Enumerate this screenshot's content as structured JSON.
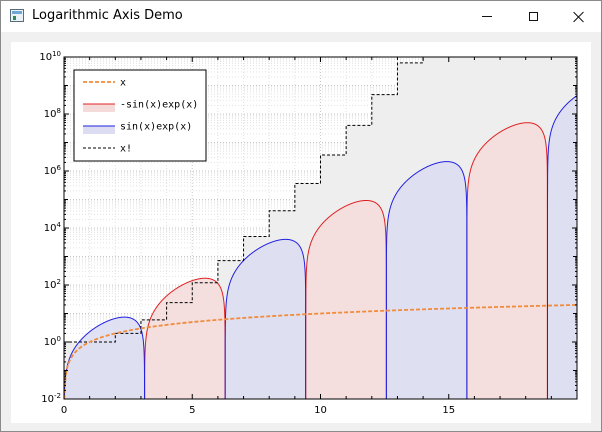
{
  "window": {
    "title": "Logarithmic Axis Demo",
    "icon": "chart-window-icon",
    "controls": {
      "minimize": "minimize-icon",
      "maximize": "maximize-icon",
      "close": "close-icon"
    }
  },
  "chart_data": {
    "type": "area",
    "title": "",
    "xlabel": "",
    "ylabel": "",
    "xlim": [
      0,
      20
    ],
    "ylim": [
      0.01,
      10000000000
    ],
    "yscale": "log",
    "grid": true,
    "legend_position": "top-left",
    "x_ticks": [
      {
        "v": 0,
        "label": "0"
      },
      {
        "v": 5,
        "label": "5"
      },
      {
        "v": 10,
        "label": "10"
      },
      {
        "v": 15,
        "label": "15"
      }
    ],
    "y_ticks": [
      {
        "v": 0.01,
        "base": "10",
        "exp": "-2"
      },
      {
        "v": 1,
        "base": "10",
        "exp": "0"
      },
      {
        "v": 100,
        "base": "10",
        "exp": "2"
      },
      {
        "v": 10000,
        "base": "10",
        "exp": "4"
      },
      {
        "v": 1000000,
        "base": "10",
        "exp": "6"
      },
      {
        "v": 100000000,
        "base": "10",
        "exp": "8"
      },
      {
        "v": 10000000000,
        "base": "10",
        "exp": "10"
      }
    ],
    "series": [
      {
        "name": "x",
        "function": "x",
        "style": "dashed",
        "color": "#f08c3c"
      },
      {
        "name": "-sin(x)exp(x)",
        "function": "-sin(x)*exp(x)",
        "style": "filled-line",
        "color": "#e02020",
        "fill": "#f5dada"
      },
      {
        "name": "sin(x)exp(x)",
        "function": "sin(x)*exp(x)",
        "style": "filled-line",
        "color": "#2020e0",
        "fill": "#dcdcf2"
      },
      {
        "name": "x!",
        "function": "gamma(floor(x)+1)",
        "style": "dashed-step",
        "color": "#000000",
        "fill": "#eeeeee"
      }
    ]
  }
}
